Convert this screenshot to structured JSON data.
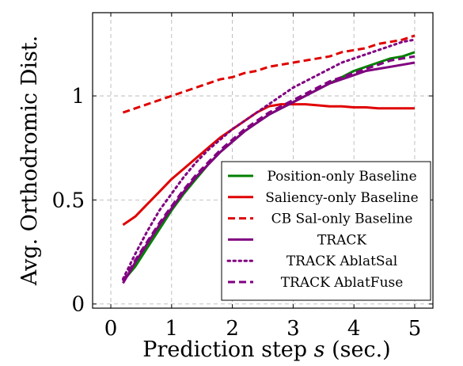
{
  "chart_data": {
    "type": "line",
    "xlabel": "Prediction step",
    "xlabel_var": "s",
    "xlabel_unit": "(sec.)",
    "ylabel": "Avg. Orthodromic Dist.",
    "xlim": [
      -0.3,
      5.3
    ],
    "ylim": [
      -0.02,
      1.4
    ],
    "xticks": [
      0,
      1,
      2,
      3,
      4,
      5
    ],
    "yticks": [
      0,
      0.5,
      1
    ],
    "ytick_labels": [
      "0",
      "0.5",
      "1"
    ],
    "grid": true,
    "grid_style": "dashed",
    "legend_position": "lower-right",
    "series": [
      {
        "name": "Position-only Baseline",
        "color": "#008000",
        "style": "solid",
        "x": [
          0.2,
          0.4,
          0.6,
          0.8,
          1.0,
          1.2,
          1.4,
          1.6,
          1.8,
          2.0,
          2.2,
          2.4,
          2.6,
          2.8,
          3.0,
          3.2,
          3.4,
          3.6,
          3.8,
          4.0,
          4.2,
          4.4,
          4.6,
          4.8,
          5.0
        ],
        "y": [
          0.11,
          0.18,
          0.27,
          0.36,
          0.45,
          0.53,
          0.6,
          0.67,
          0.73,
          0.78,
          0.83,
          0.87,
          0.91,
          0.94,
          0.97,
          1.0,
          1.03,
          1.06,
          1.09,
          1.12,
          1.14,
          1.16,
          1.18,
          1.19,
          1.21
        ]
      },
      {
        "name": "Saliency-only Baseline",
        "color": "#e00000",
        "style": "solid",
        "x": [
          0.2,
          0.4,
          0.6,
          0.8,
          1.0,
          1.2,
          1.4,
          1.6,
          1.8,
          2.0,
          2.2,
          2.4,
          2.6,
          2.8,
          3.0,
          3.2,
          3.4,
          3.6,
          3.8,
          4.0,
          4.2,
          4.4,
          4.6,
          4.8,
          5.0
        ],
        "y": [
          0.38,
          0.42,
          0.48,
          0.54,
          0.6,
          0.65,
          0.7,
          0.75,
          0.8,
          0.84,
          0.88,
          0.92,
          0.95,
          0.96,
          0.96,
          0.96,
          0.955,
          0.95,
          0.95,
          0.945,
          0.945,
          0.94,
          0.94,
          0.94,
          0.94
        ]
      },
      {
        "name": "CB Sal-only Baseline",
        "color": "#e00000",
        "style": "dashed",
        "x": [
          0.2,
          0.4,
          0.6,
          0.8,
          1.0,
          1.2,
          1.4,
          1.6,
          1.8,
          2.0,
          2.2,
          2.4,
          2.6,
          2.8,
          3.0,
          3.2,
          3.4,
          3.6,
          3.8,
          4.0,
          4.2,
          4.4,
          4.6,
          4.8,
          5.0
        ],
        "y": [
          0.92,
          0.94,
          0.96,
          0.98,
          1.0,
          1.02,
          1.04,
          1.06,
          1.08,
          1.09,
          1.11,
          1.12,
          1.14,
          1.15,
          1.16,
          1.17,
          1.18,
          1.19,
          1.21,
          1.22,
          1.23,
          1.25,
          1.26,
          1.27,
          1.29
        ]
      },
      {
        "name": "TRACK",
        "color": "#800080",
        "style": "solid",
        "x": [
          0.2,
          0.4,
          0.6,
          0.8,
          1.0,
          1.2,
          1.4,
          1.6,
          1.8,
          2.0,
          2.2,
          2.4,
          2.6,
          2.8,
          3.0,
          3.2,
          3.4,
          3.6,
          3.8,
          4.0,
          4.2,
          4.4,
          4.6,
          4.8,
          5.0
        ],
        "y": [
          0.1,
          0.2,
          0.29,
          0.38,
          0.46,
          0.54,
          0.61,
          0.67,
          0.73,
          0.78,
          0.83,
          0.87,
          0.91,
          0.94,
          0.97,
          1.0,
          1.03,
          1.06,
          1.08,
          1.1,
          1.12,
          1.13,
          1.14,
          1.15,
          1.16
        ]
      },
      {
        "name": "TRACK AblatSal",
        "color": "#800080",
        "style": "dotted",
        "x": [
          0.2,
          0.4,
          0.6,
          0.8,
          1.0,
          1.2,
          1.4,
          1.6,
          1.8,
          2.0,
          2.2,
          2.4,
          2.6,
          2.8,
          3.0,
          3.2,
          3.4,
          3.6,
          3.8,
          4.0,
          4.2,
          4.4,
          4.6,
          4.8,
          5.0
        ],
        "y": [
          0.12,
          0.24,
          0.35,
          0.45,
          0.53,
          0.61,
          0.68,
          0.74,
          0.79,
          0.84,
          0.88,
          0.92,
          0.96,
          1.0,
          1.04,
          1.07,
          1.1,
          1.13,
          1.16,
          1.18,
          1.2,
          1.22,
          1.24,
          1.26,
          1.27
        ]
      },
      {
        "name": "TRACK AblatFuse",
        "color": "#800080",
        "style": "dashed",
        "x": [
          0.2,
          0.4,
          0.6,
          0.8,
          1.0,
          1.2,
          1.4,
          1.6,
          1.8,
          2.0,
          2.2,
          2.4,
          2.6,
          2.8,
          3.0,
          3.2,
          3.4,
          3.6,
          3.8,
          4.0,
          4.2,
          4.4,
          4.6,
          4.8,
          5.0
        ],
        "y": [
          0.11,
          0.21,
          0.3,
          0.39,
          0.47,
          0.55,
          0.62,
          0.68,
          0.74,
          0.79,
          0.84,
          0.88,
          0.92,
          0.95,
          0.98,
          1.01,
          1.04,
          1.07,
          1.09,
          1.11,
          1.13,
          1.15,
          1.17,
          1.18,
          1.19
        ]
      }
    ]
  }
}
